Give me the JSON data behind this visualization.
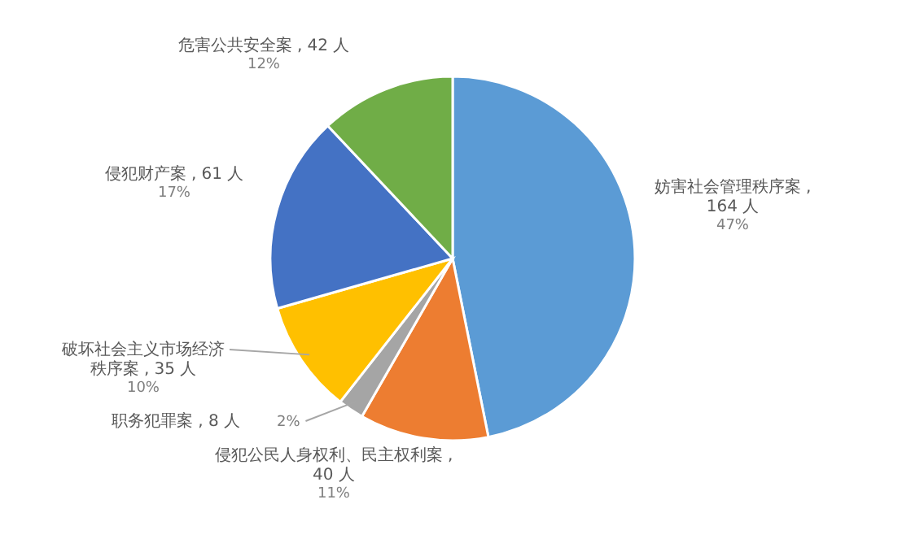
{
  "chart_data": {
    "type": "pie",
    "categories": [
      "妨害社会管理秩序案",
      "侵犯公民人身权利、民主权利案",
      "职务犯罪案",
      "破坏社会主义市场经济秩序案",
      "侵犯财产案",
      "危害公共安全案"
    ],
    "values": [
      164,
      40,
      8,
      35,
      61,
      42
    ],
    "colors": [
      "#5b9bd5",
      "#ed7d31",
      "#a5a5a5",
      "#ffc000",
      "#4472c4",
      "#70ad47"
    ],
    "value_labels": [
      " ,\n164 人\n47%",
      " ,\n40 人\n11%",
      " , 8 人\n2%",
      " , 35 人\n10%",
      " , 61 人\n17%",
      " , 42 人\n12%"
    ],
    "legend": false
  }
}
